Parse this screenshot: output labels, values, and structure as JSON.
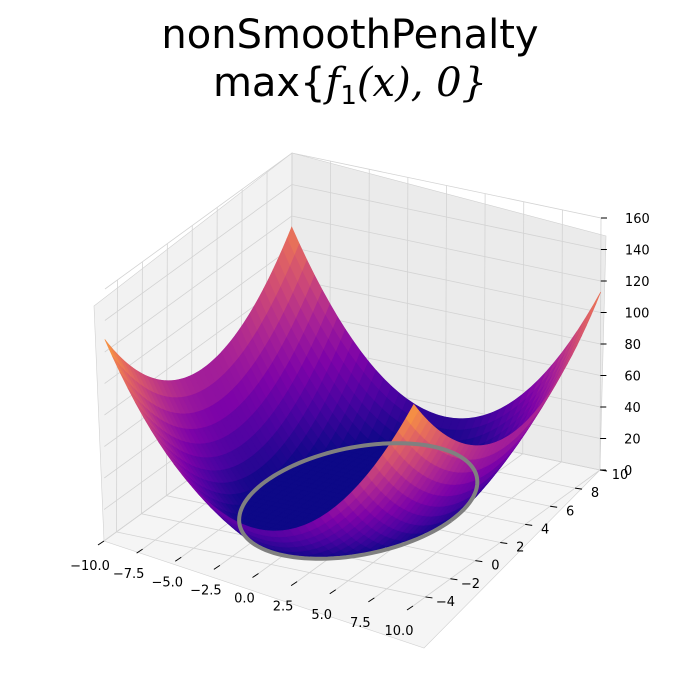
{
  "chart_data": {
    "type": "surface3d",
    "title_line1": "nonSmoothPenalty",
    "title_line2": {
      "prefix": "max{",
      "func": "f",
      "sub": "1",
      "arg": "(x), 0}"
    },
    "colormap": "plasma",
    "xlim": [
      -10,
      10
    ],
    "ylim": [
      -5,
      10
    ],
    "zlim": [
      0,
      160
    ],
    "x_ticks": [
      "−10.0",
      "−7.5",
      "−5.0",
      "−2.5",
      "0.0",
      "2.5",
      "5.0",
      "7.5",
      "10.0"
    ],
    "y_ticks": [
      "−4",
      "−2",
      "0",
      "2",
      "4",
      "6",
      "8",
      "10"
    ],
    "z_ticks": [
      "0",
      "20",
      "40",
      "60",
      "80",
      "100",
      "120",
      "140",
      "160"
    ],
    "constraint_curve": {
      "shape": "circle",
      "center": [
        0,
        3
      ],
      "radius": 6,
      "color": "#808080"
    },
    "grid": true
  }
}
